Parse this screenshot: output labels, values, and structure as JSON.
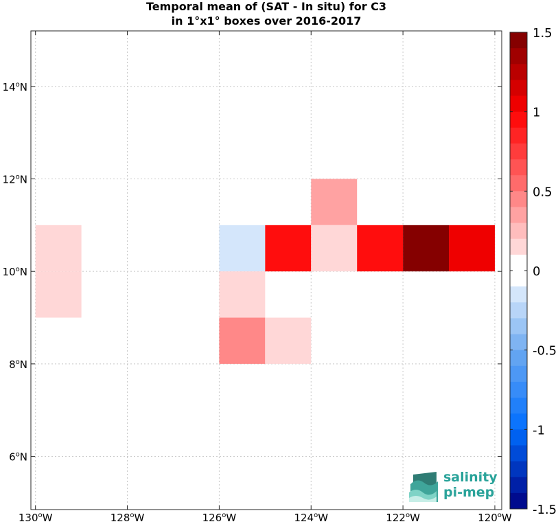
{
  "chart_data": {
    "type": "heatmap",
    "title": [
      "Temporal mean of (SAT - In situ) for C3",
      "in 1°x1° boxes over 2016-2017"
    ],
    "xlabel": "",
    "ylabel": "",
    "xlim": [
      -130.1,
      -119.85
    ],
    "ylim": [
      4.85,
      15.2
    ],
    "xticks": [
      -130,
      -128,
      -126,
      -124,
      -122,
      -120
    ],
    "xtick_labels": [
      "130°W",
      "128°W",
      "126°W",
      "124°W",
      "122°W",
      "120°W"
    ],
    "yticks": [
      6,
      8,
      10,
      12,
      14
    ],
    "ytick_labels": [
      "6°N",
      "8°N",
      "10°N",
      "12°N",
      "14°N"
    ],
    "grid": true,
    "cell_size_deg": 1,
    "cells": [
      {
        "lon_min": -130,
        "lat_min": 9,
        "value": 0.1
      },
      {
        "lon_min": -130,
        "lat_min": 10,
        "value": 0.1
      },
      {
        "lon_min": -126,
        "lat_min": 10,
        "value": -0.1
      },
      {
        "lon_min": -126,
        "lat_min": 9,
        "value": 0.1
      },
      {
        "lon_min": -126,
        "lat_min": 8,
        "value": 0.45
      },
      {
        "lon_min": -125,
        "lat_min": 10,
        "value": 0.95
      },
      {
        "lon_min": -125,
        "lat_min": 8,
        "value": 0.1
      },
      {
        "lon_min": -124,
        "lat_min": 11,
        "value": 0.3
      },
      {
        "lon_min": -124,
        "lat_min": 10,
        "value": 0.1
      },
      {
        "lon_min": -123,
        "lat_min": 10,
        "value": 0.95
      },
      {
        "lon_min": -122,
        "lat_min": 10,
        "value": 1.45
      },
      {
        "lon_min": -121,
        "lat_min": 10,
        "value": 1.05
      }
    ],
    "colorbar": {
      "min": -1.5,
      "max": 1.5,
      "levels": 30,
      "ticks": [
        1.5,
        1,
        0.5,
        0,
        -0.5,
        -1,
        -1.5
      ],
      "tick_labels": [
        "1.5",
        "1",
        "0.5",
        "0",
        "-0.5",
        "-1",
        "-1.5"
      ]
    }
  },
  "logo": {
    "line1": "salinity",
    "line2": "pi-mep",
    "color": "#2aa39a"
  }
}
